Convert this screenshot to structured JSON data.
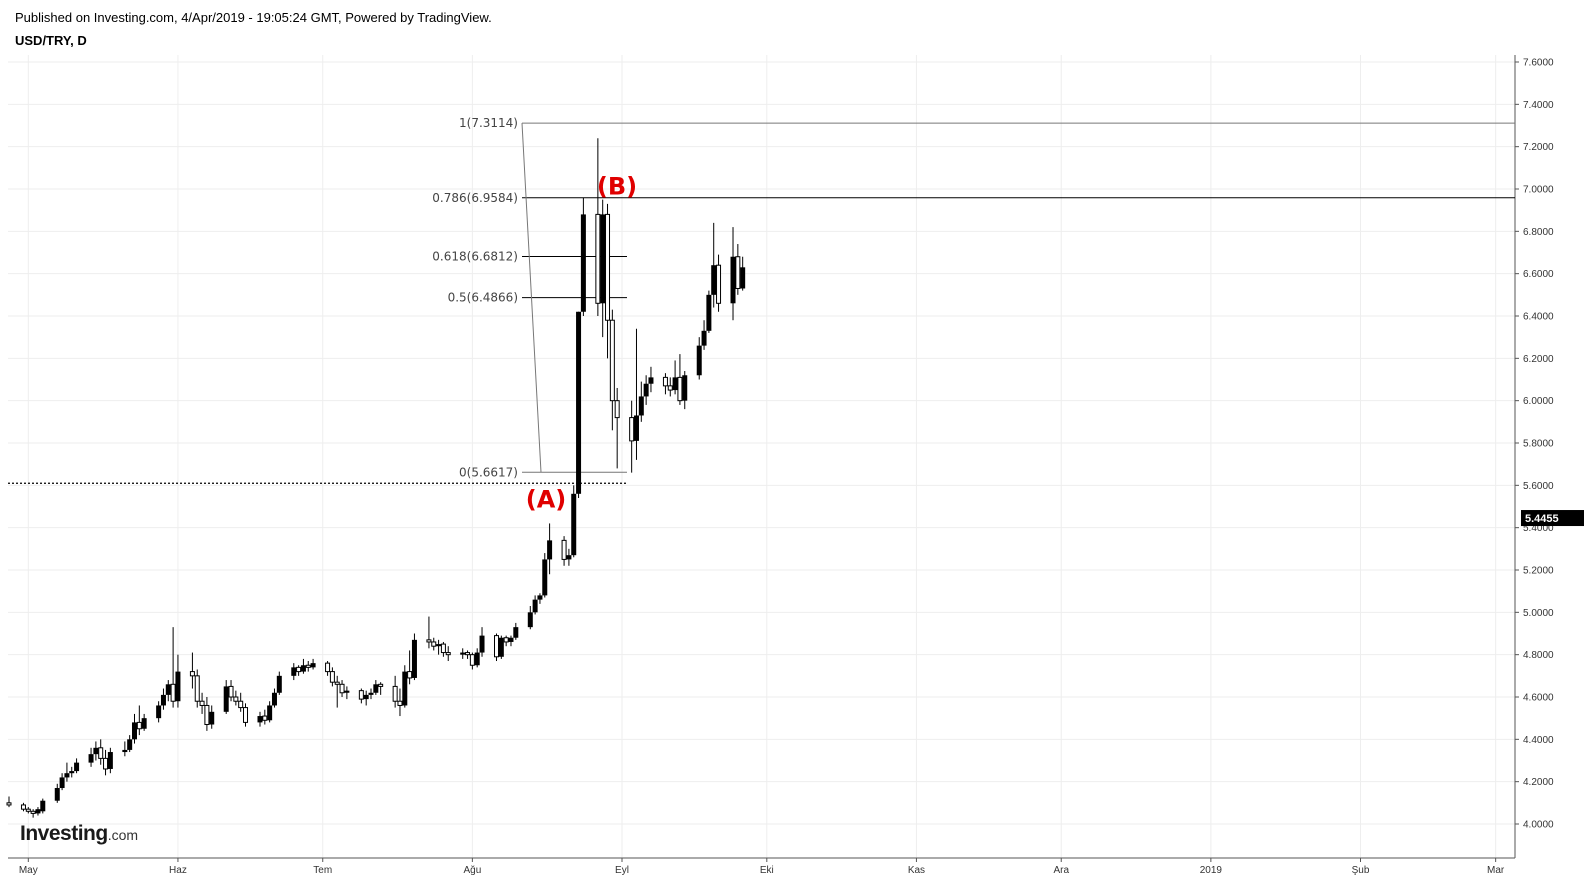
{
  "header": {
    "published": "Published on Investing.com, 4/Apr/2019 - 19:05:24 GMT, Powered by TradingView.",
    "symbol": "USD/TRY, D"
  },
  "logo": {
    "brand": "Investing",
    "suffix": ".com"
  },
  "colors": {
    "candle": "#000000",
    "grid": "#eeeeee",
    "axis": "#555555",
    "wave_label": "#e00000",
    "price_tag_bg": "#000000",
    "price_tag_text": "#ffffff"
  },
  "chart_data": {
    "type": "candlestick",
    "title": "USD/TRY, D",
    "grid": true,
    "x_ticks": [
      "May",
      "Haz",
      "Tem",
      "Ağu",
      "Eyl",
      "Eki",
      "Kas",
      "Ara",
      "2019",
      "Şub",
      "Mar"
    ],
    "y_ticks": [
      "7.6000",
      "7.4000",
      "7.2000",
      "7.0000",
      "6.8000",
      "6.6000",
      "6.4000",
      "6.2000",
      "6.0000",
      "5.8000",
      "5.6000",
      "5.4000",
      "5.2000",
      "5.0000",
      "4.8000",
      "4.6000",
      "4.4000",
      "4.2000",
      "4.0000"
    ],
    "y_range": [
      3.92,
      7.6
    ],
    "current_price": {
      "label": "5.4455",
      "value": 5.4455
    },
    "dotted_level": 5.61,
    "fibonacci": [
      {
        "label": "1(7.3114)",
        "value": 7.3114
      },
      {
        "label": "0.786(6.9584)",
        "value": 6.9584
      },
      {
        "label": "0.618(6.6812)",
        "value": 6.6812
      },
      {
        "label": "0.5(6.4866)",
        "value": 6.4866
      },
      {
        "label": "0(5.6617)",
        "value": 5.6617
      }
    ],
    "wave_labels": [
      {
        "label": "(A)",
        "value": 5.6
      },
      {
        "label": "(B)",
        "value": 6.95
      }
    ],
    "candles": [
      {
        "date": "2018-04-27",
        "o": 4.1,
        "h": 4.13,
        "l": 4.08,
        "c": 4.09
      },
      {
        "date": "2018-04-30",
        "o": 4.09,
        "h": 4.1,
        "l": 4.06,
        "c": 4.07
      },
      {
        "date": "2018-05-01",
        "o": 4.07,
        "h": 4.08,
        "l": 4.05,
        "c": 4.06
      },
      {
        "date": "2018-05-02",
        "o": 4.06,
        "h": 4.07,
        "l": 4.03,
        "c": 4.05
      },
      {
        "date": "2018-05-03",
        "o": 4.05,
        "h": 4.08,
        "l": 4.04,
        "c": 4.07
      },
      {
        "date": "2018-05-04",
        "o": 4.06,
        "h": 4.12,
        "l": 4.05,
        "c": 4.11
      },
      {
        "date": "2018-05-07",
        "o": 4.11,
        "h": 4.19,
        "l": 4.1,
        "c": 4.17
      },
      {
        "date": "2018-05-08",
        "o": 4.17,
        "h": 4.24,
        "l": 4.16,
        "c": 4.22
      },
      {
        "date": "2018-05-09",
        "o": 4.22,
        "h": 4.29,
        "l": 4.2,
        "c": 4.24
      },
      {
        "date": "2018-05-10",
        "o": 4.24,
        "h": 4.27,
        "l": 4.22,
        "c": 4.25
      },
      {
        "date": "2018-05-11",
        "o": 4.25,
        "h": 4.31,
        "l": 4.24,
        "c": 4.29
      },
      {
        "date": "2018-05-14",
        "o": 4.29,
        "h": 4.36,
        "l": 4.27,
        "c": 4.33
      },
      {
        "date": "2018-05-15",
        "o": 4.33,
        "h": 4.39,
        "l": 4.3,
        "c": 4.36
      },
      {
        "date": "2018-05-16",
        "o": 4.36,
        "h": 4.4,
        "l": 4.28,
        "c": 4.31
      },
      {
        "date": "2018-05-17",
        "o": 4.31,
        "h": 4.35,
        "l": 4.23,
        "c": 4.26
      },
      {
        "date": "2018-05-18",
        "o": 4.26,
        "h": 4.36,
        "l": 4.24,
        "c": 4.34
      },
      {
        "date": "2018-05-21",
        "o": 4.34,
        "h": 4.39,
        "l": 4.32,
        "c": 4.35
      },
      {
        "date": "2018-05-22",
        "o": 4.35,
        "h": 4.42,
        "l": 4.34,
        "c": 4.4
      },
      {
        "date": "2018-05-23",
        "o": 4.4,
        "h": 4.52,
        "l": 4.38,
        "c": 4.48
      },
      {
        "date": "2018-05-24",
        "o": 4.48,
        "h": 4.56,
        "l": 4.42,
        "c": 4.45
      },
      {
        "date": "2018-05-25",
        "o": 4.45,
        "h": 4.52,
        "l": 4.44,
        "c": 4.5
      },
      {
        "date": "2018-05-28",
        "o": 4.5,
        "h": 4.58,
        "l": 4.48,
        "c": 4.56
      },
      {
        "date": "2018-05-29",
        "o": 4.56,
        "h": 4.64,
        "l": 4.54,
        "c": 4.61
      },
      {
        "date": "2018-05-30",
        "o": 4.61,
        "h": 4.68,
        "l": 4.58,
        "c": 4.66
      },
      {
        "date": "2018-05-31",
        "o": 4.66,
        "h": 4.93,
        "l": 4.55,
        "c": 4.58
      },
      {
        "date": "2018-06-01",
        "o": 4.58,
        "h": 4.8,
        "l": 4.55,
        "c": 4.72
      },
      {
        "date": "2018-06-04",
        "o": 4.72,
        "h": 4.81,
        "l": 4.64,
        "c": 4.7
      },
      {
        "date": "2018-06-05",
        "o": 4.7,
        "h": 4.73,
        "l": 4.55,
        "c": 4.58
      },
      {
        "date": "2018-06-06",
        "o": 4.58,
        "h": 4.62,
        "l": 4.52,
        "c": 4.56
      },
      {
        "date": "2018-06-07",
        "o": 4.56,
        "h": 4.6,
        "l": 4.44,
        "c": 4.47
      },
      {
        "date": "2018-06-08",
        "o": 4.47,
        "h": 4.56,
        "l": 4.45,
        "c": 4.53
      },
      {
        "date": "2018-06-11",
        "o": 4.53,
        "h": 4.68,
        "l": 4.52,
        "c": 4.65
      },
      {
        "date": "2018-06-12",
        "o": 4.65,
        "h": 4.68,
        "l": 4.58,
        "c": 4.6
      },
      {
        "date": "2018-06-13",
        "o": 4.6,
        "h": 4.63,
        "l": 4.56,
        "c": 4.58
      },
      {
        "date": "2018-06-14",
        "o": 4.58,
        "h": 4.62,
        "l": 4.53,
        "c": 4.55
      },
      {
        "date": "2018-06-15",
        "o": 4.55,
        "h": 4.57,
        "l": 4.46,
        "c": 4.48
      },
      {
        "date": "2018-06-18",
        "o": 4.48,
        "h": 4.53,
        "l": 4.46,
        "c": 4.51
      },
      {
        "date": "2018-06-19",
        "o": 4.51,
        "h": 4.54,
        "l": 4.47,
        "c": 4.49
      },
      {
        "date": "2018-06-20",
        "o": 4.49,
        "h": 4.58,
        "l": 4.48,
        "c": 4.56
      },
      {
        "date": "2018-06-21",
        "o": 4.56,
        "h": 4.64,
        "l": 4.55,
        "c": 4.62
      },
      {
        "date": "2018-06-22",
        "o": 4.62,
        "h": 4.72,
        "l": 4.61,
        "c": 4.7
      },
      {
        "date": "2018-06-25",
        "o": 4.7,
        "h": 4.76,
        "l": 4.68,
        "c": 4.74
      },
      {
        "date": "2018-06-26",
        "o": 4.74,
        "h": 4.75,
        "l": 4.7,
        "c": 4.72
      },
      {
        "date": "2018-06-27",
        "o": 4.72,
        "h": 4.78,
        "l": 4.71,
        "c": 4.75
      },
      {
        "date": "2018-06-28",
        "o": 4.75,
        "h": 4.77,
        "l": 4.72,
        "c": 4.74
      },
      {
        "date": "2018-06-29",
        "o": 4.74,
        "h": 4.78,
        "l": 4.73,
        "c": 4.76
      },
      {
        "date": "2018-07-02",
        "o": 4.76,
        "h": 4.77,
        "l": 4.7,
        "c": 4.72
      },
      {
        "date": "2018-07-03",
        "o": 4.72,
        "h": 4.74,
        "l": 4.65,
        "c": 4.67
      },
      {
        "date": "2018-07-04",
        "o": 4.67,
        "h": 4.7,
        "l": 4.55,
        "c": 4.66
      },
      {
        "date": "2018-07-05",
        "o": 4.66,
        "h": 4.68,
        "l": 4.6,
        "c": 4.62
      },
      {
        "date": "2018-07-06",
        "o": 4.62,
        "h": 4.65,
        "l": 4.59,
        "c": 4.63
      },
      {
        "date": "2018-07-09",
        "o": 4.63,
        "h": 4.64,
        "l": 4.57,
        "c": 4.59
      },
      {
        "date": "2018-07-10",
        "o": 4.59,
        "h": 4.63,
        "l": 4.56,
        "c": 4.61
      },
      {
        "date": "2018-07-11",
        "o": 4.61,
        "h": 4.64,
        "l": 4.59,
        "c": 4.62
      },
      {
        "date": "2018-07-12",
        "o": 4.62,
        "h": 4.68,
        "l": 4.61,
        "c": 4.66
      },
      {
        "date": "2018-07-13",
        "o": 4.66,
        "h": 4.67,
        "l": 4.61,
        "c": 4.65
      },
      {
        "date": "2018-07-16",
        "o": 4.65,
        "h": 4.7,
        "l": 4.55,
        "c": 4.58
      },
      {
        "date": "2018-07-17",
        "o": 4.58,
        "h": 4.64,
        "l": 4.51,
        "c": 4.56
      },
      {
        "date": "2018-07-18",
        "o": 4.56,
        "h": 4.75,
        "l": 4.55,
        "c": 4.72
      },
      {
        "date": "2018-07-19",
        "o": 4.72,
        "h": 4.82,
        "l": 4.66,
        "c": 4.69
      },
      {
        "date": "2018-07-20",
        "o": 4.69,
        "h": 4.9,
        "l": 4.68,
        "c": 4.87
      },
      {
        "date": "2018-07-23",
        "o": 4.87,
        "h": 4.98,
        "l": 4.83,
        "c": 4.86
      },
      {
        "date": "2018-07-24",
        "o": 4.86,
        "h": 4.88,
        "l": 4.82,
        "c": 4.84
      },
      {
        "date": "2018-07-25",
        "o": 4.84,
        "h": 4.87,
        "l": 4.8,
        "c": 4.85
      },
      {
        "date": "2018-07-26",
        "o": 4.85,
        "h": 4.86,
        "l": 4.79,
        "c": 4.81
      },
      {
        "date": "2018-07-27",
        "o": 4.81,
        "h": 4.84,
        "l": 4.77,
        "c": 4.8
      },
      {
        "date": "2018-07-30",
        "o": 4.8,
        "h": 4.83,
        "l": 4.78,
        "c": 4.81
      },
      {
        "date": "2018-07-31",
        "o": 4.81,
        "h": 4.82,
        "l": 4.78,
        "c": 4.8
      },
      {
        "date": "2018-08-01",
        "o": 4.8,
        "h": 4.81,
        "l": 4.73,
        "c": 4.75
      },
      {
        "date": "2018-08-02",
        "o": 4.75,
        "h": 4.83,
        "l": 4.74,
        "c": 4.81
      },
      {
        "date": "2018-08-03",
        "o": 4.81,
        "h": 4.93,
        "l": 4.79,
        "c": 4.89
      },
      {
        "date": "2018-08-06",
        "o": 4.89,
        "h": 4.9,
        "l": 4.77,
        "c": 4.79
      },
      {
        "date": "2018-08-07",
        "o": 4.79,
        "h": 4.89,
        "l": 4.78,
        "c": 4.88
      },
      {
        "date": "2018-08-08",
        "o": 4.88,
        "h": 4.89,
        "l": 4.84,
        "c": 4.86
      },
      {
        "date": "2018-08-09",
        "o": 4.86,
        "h": 4.89,
        "l": 4.84,
        "c": 4.88
      },
      {
        "date": "2018-08-10",
        "o": 4.88,
        "h": 4.95,
        "l": 4.87,
        "c": 4.93
      },
      {
        "date": "2018-08-13",
        "o": 4.93,
        "h": 5.03,
        "l": 4.92,
        "c": 5.0
      },
      {
        "date": "2018-08-14",
        "o": 5.0,
        "h": 5.08,
        "l": 4.99,
        "c": 5.06
      },
      {
        "date": "2018-08-15",
        "o": 5.06,
        "h": 5.09,
        "l": 5.04,
        "c": 5.08
      },
      {
        "date": "2018-08-16",
        "o": 5.08,
        "h": 5.28,
        "l": 5.07,
        "c": 5.25
      },
      {
        "date": "2018-08-17",
        "o": 5.25,
        "h": 5.42,
        "l": 5.18,
        "c": 5.34
      },
      {
        "date": "2018-08-20",
        "o": 5.34,
        "h": 5.36,
        "l": 5.22,
        "c": 5.25
      },
      {
        "date": "2018-08-21",
        "o": 5.25,
        "h": 5.3,
        "l": 5.22,
        "c": 5.27
      },
      {
        "date": "2018-08-22",
        "o": 5.27,
        "h": 5.6,
        "l": 5.26,
        "c": 5.56
      },
      {
        "date": "2018-08-23",
        "o": 5.56,
        "h": 6.42,
        "l": 5.54,
        "c": 6.42
      },
      {
        "date": "2018-08-24",
        "o": 6.42,
        "h": 6.96,
        "l": 6.4,
        "c": 6.88
      },
      {
        "date": "2018-08-27",
        "o": 6.88,
        "h": 7.24,
        "l": 6.4,
        "c": 6.46
      },
      {
        "date": "2018-08-28",
        "o": 6.46,
        "h": 6.95,
        "l": 6.3,
        "c": 6.88
      },
      {
        "date": "2018-08-29",
        "o": 6.88,
        "h": 6.93,
        "l": 6.2,
        "c": 6.38
      },
      {
        "date": "2018-08-30",
        "o": 6.38,
        "h": 6.43,
        "l": 5.86,
        "c": 6.0
      },
      {
        "date": "2018-08-31",
        "o": 6.0,
        "h": 6.06,
        "l": 5.68,
        "c": 5.92
      },
      {
        "date": "2018-09-03",
        "o": 5.92,
        "h": 6.0,
        "l": 5.66,
        "c": 5.81
      },
      {
        "date": "2018-09-04",
        "o": 5.81,
        "h": 6.34,
        "l": 5.72,
        "c": 5.93
      },
      {
        "date": "2018-09-05",
        "o": 5.93,
        "h": 6.09,
        "l": 5.9,
        "c": 6.02
      },
      {
        "date": "2018-09-06",
        "o": 6.02,
        "h": 6.12,
        "l": 5.98,
        "c": 6.08
      },
      {
        "date": "2018-09-07",
        "o": 6.08,
        "h": 6.16,
        "l": 6.04,
        "c": 6.11
      },
      {
        "date": "2018-09-10",
        "o": 6.11,
        "h": 6.13,
        "l": 6.03,
        "c": 6.07
      },
      {
        "date": "2018-09-11",
        "o": 6.07,
        "h": 6.11,
        "l": 6.02,
        "c": 6.05
      },
      {
        "date": "2018-09-12",
        "o": 6.05,
        "h": 6.19,
        "l": 6.03,
        "c": 6.11
      },
      {
        "date": "2018-09-13",
        "o": 6.11,
        "h": 6.22,
        "l": 5.98,
        "c": 6.0
      },
      {
        "date": "2018-09-14",
        "o": 6.0,
        "h": 6.14,
        "l": 5.96,
        "c": 6.12
      },
      {
        "date": "2018-09-17",
        "o": 6.12,
        "h": 6.3,
        "l": 6.1,
        "c": 6.26
      },
      {
        "date": "2018-09-18",
        "o": 6.26,
        "h": 6.38,
        "l": 6.24,
        "c": 6.33
      },
      {
        "date": "2018-09-19",
        "o": 6.33,
        "h": 6.52,
        "l": 6.32,
        "c": 6.5
      },
      {
        "date": "2018-09-20",
        "o": 6.5,
        "h": 6.84,
        "l": 6.44,
        "c": 6.64
      },
      {
        "date": "2018-09-21",
        "o": 6.64,
        "h": 6.69,
        "l": 6.42,
        "c": 6.46
      },
      {
        "date": "2018-09-24",
        "o": 6.46,
        "h": 6.82,
        "l": 6.38,
        "c": 6.68
      },
      {
        "date": "2018-09-25",
        "o": 6.68,
        "h": 6.74,
        "l": 6.5,
        "c": 6.53
      },
      {
        "date": "2018-09-26",
        "o": 6.53,
        "h": 6.68,
        "l": 6.52,
        "c": 6.63
      }
    ]
  }
}
